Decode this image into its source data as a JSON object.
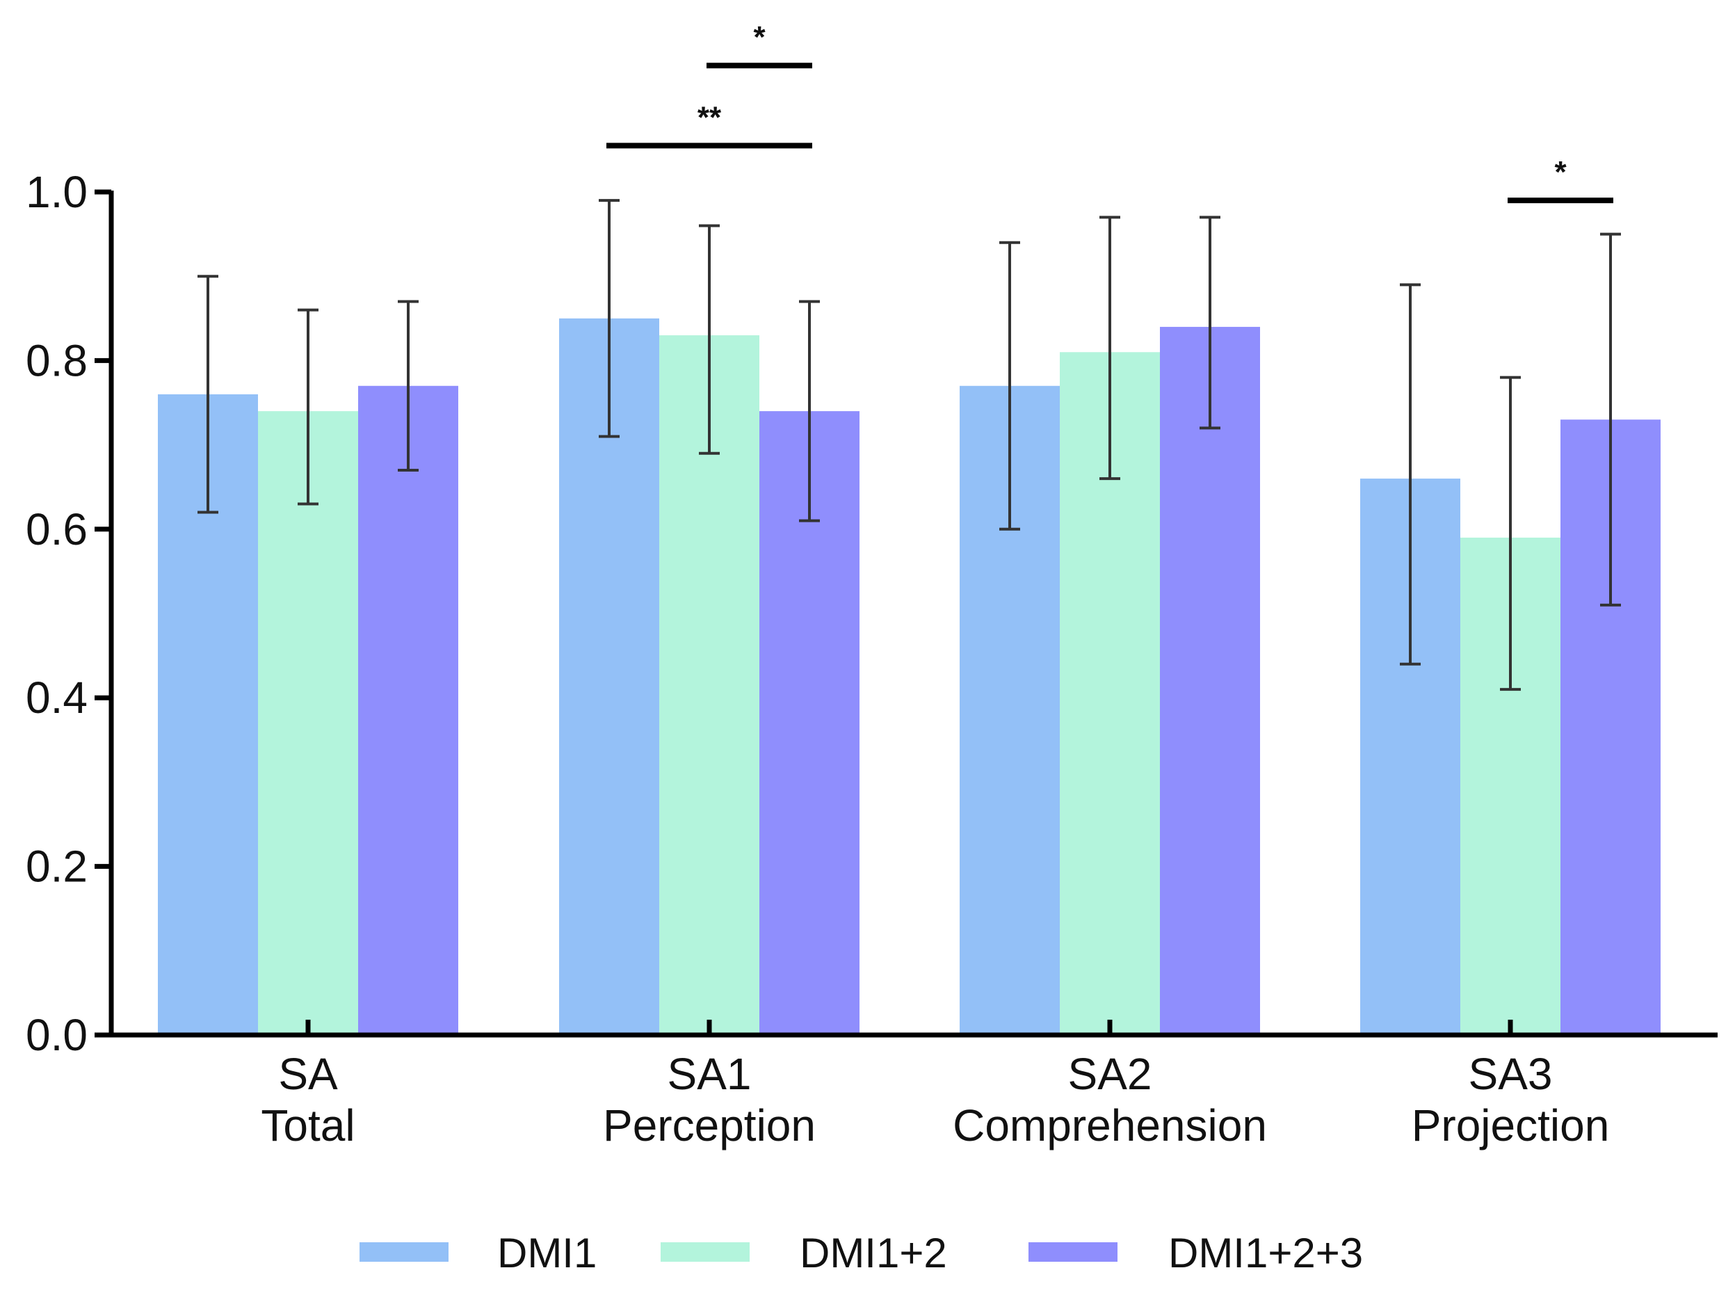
{
  "chart_data": {
    "type": "bar",
    "title": "",
    "xlabel": "",
    "ylabel": "",
    "ylim": [
      0,
      1.0
    ],
    "yticks": [
      0.0,
      0.2,
      0.4,
      0.6,
      0.8,
      1.0
    ],
    "ytick_labels": [
      "0.0",
      "0.2",
      "0.4",
      "0.6",
      "0.8",
      "1.0"
    ],
    "categories": [
      {
        "line1": "SA",
        "line2": "Total"
      },
      {
        "line1": "SA1",
        "line2": "Perception"
      },
      {
        "line1": "SA2",
        "line2": "Comprehension"
      },
      {
        "line1": "SA3",
        "line2": "Projection"
      }
    ],
    "series": [
      {
        "name": "DMI1",
        "color": "#93c0f7",
        "values": [
          0.76,
          0.85,
          0.77,
          0.66
        ],
        "err_low": [
          0.62,
          0.71,
          0.6,
          0.44
        ],
        "err_high": [
          0.9,
          0.99,
          0.94,
          0.89
        ]
      },
      {
        "name": "DMI1+2",
        "color": "#b3f4dc",
        "values": [
          0.74,
          0.83,
          0.81,
          0.59
        ],
        "err_low": [
          0.63,
          0.69,
          0.66,
          0.41
        ],
        "err_high": [
          0.86,
          0.96,
          0.97,
          0.78
        ]
      },
      {
        "name": "DMI1+2+3",
        "color": "#8f8efd",
        "values": [
          0.77,
          0.74,
          0.84,
          0.73
        ],
        "err_low": [
          0.67,
          0.61,
          0.72,
          0.51
        ],
        "err_high": [
          0.87,
          0.87,
          0.97,
          0.95
        ]
      }
    ],
    "legend_position": "bottom",
    "significance": [
      {
        "category": 1,
        "from_series": 0,
        "to_series": 2,
        "label": "**",
        "y": 1.055
      },
      {
        "category": 1,
        "from_series": 1,
        "to_series": 2,
        "label": "*",
        "y": 1.15
      },
      {
        "category": 3,
        "from_series": 1,
        "to_series": 2,
        "label": "*",
        "y": 0.99
      }
    ]
  }
}
